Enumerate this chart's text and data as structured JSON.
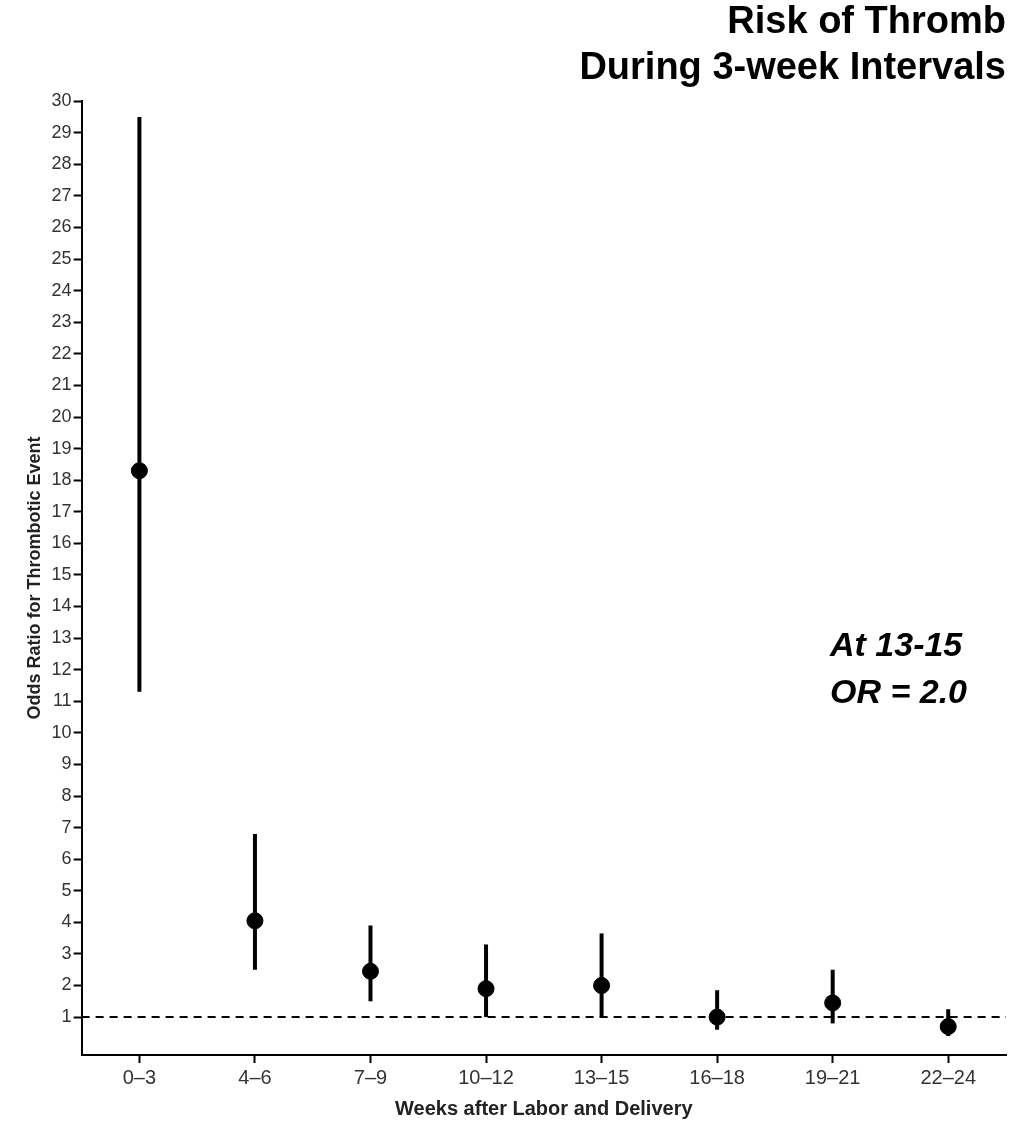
{
  "chart_data": {
    "type": "scatter",
    "title": "Risk of Thromb\nDuring 3-week Intervals",
    "xlabel": "Weeks after Labor and Delivery",
    "ylabel": "Odds Ratio for Thrombotic Event",
    "categories": [
      "0–3",
      "4–6",
      "7–9",
      "10–12",
      "13–15",
      "16–18",
      "19–21",
      "22–24"
    ],
    "series": [
      {
        "color": "#000000",
        "values": [
          18.3,
          4.05,
          2.45,
          1.9,
          2.0,
          1.0,
          1.45,
          0.7
        ],
        "errors": [
          [
            11.3,
            29.5
          ],
          [
            2.5,
            6.8
          ],
          [
            1.5,
            3.9
          ],
          [
            1.0,
            3.3
          ],
          [
            1.0,
            3.65
          ],
          [
            0.6,
            1.85
          ],
          [
            0.8,
            2.5
          ],
          [
            0.4,
            1.25
          ]
        ]
      }
    ],
    "ylim": [
      -0.2,
      30
    ],
    "yticks": [
      1,
      2,
      3,
      4,
      5,
      6,
      7,
      8,
      9,
      10,
      11,
      12,
      13,
      14,
      15,
      16,
      17,
      18,
      19,
      20,
      21,
      22,
      23,
      24,
      25,
      26,
      27,
      28,
      29,
      30
    ],
    "ref_lines": [
      {
        "axis": "y",
        "value": 1,
        "line_style": "dashed",
        "color": "#000000"
      }
    ],
    "annotations": [
      "At 13-15",
      "OR = 2.0"
    ],
    "grid": false,
    "legend": false,
    "marker": "circle"
  }
}
